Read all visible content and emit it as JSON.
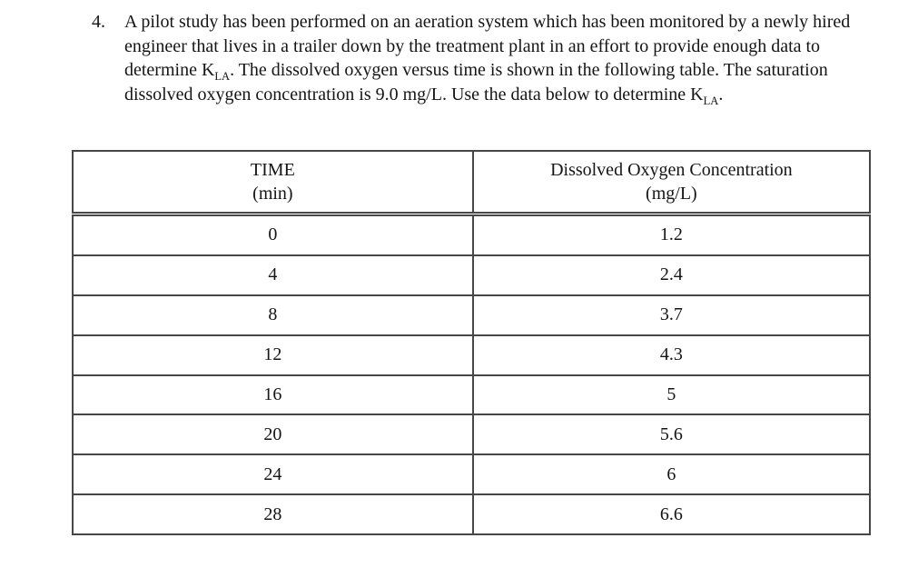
{
  "problem": {
    "number": "4.",
    "segments": {
      "s1": "A pilot study has been performed on an aeration system which has been monitored by a newly hired engineer that lives in a trailer down by the treatment plant in an effort to provide enough data to determine K",
      "sub1": "LA",
      "s2": ". The dissolved oxygen versus time is shown in the following table. The saturation dissolved oxygen concentration is 9.0 mg/L. Use the data below to determine K",
      "sub2": "LA",
      "s3": "."
    }
  },
  "table": {
    "headers": {
      "time": {
        "line1": "TIME",
        "line2": "(min)"
      },
      "do": {
        "line1": "Dissolved Oxygen Concentration",
        "line2": "(mg/L)"
      }
    },
    "rows": [
      {
        "time": "0",
        "do": "1.2"
      },
      {
        "time": "4",
        "do": "2.4"
      },
      {
        "time": "8",
        "do": "3.7"
      },
      {
        "time": "12",
        "do": "4.3"
      },
      {
        "time": "16",
        "do": "5"
      },
      {
        "time": "20",
        "do": "5.6"
      },
      {
        "time": "24",
        "do": "6"
      },
      {
        "time": "28",
        "do": "6.6"
      }
    ],
    "border_color": "#474747"
  },
  "chart_data": {
    "type": "table",
    "columns": [
      "TIME (min)",
      "Dissolved Oxygen Concentration (mg/L)"
    ],
    "x": [
      0,
      4,
      8,
      12,
      16,
      20,
      24,
      28
    ],
    "values": [
      1.2,
      2.4,
      3.7,
      4.3,
      5,
      5.6,
      6,
      6.6
    ],
    "saturation_do_mg_per_L": 9.0
  }
}
